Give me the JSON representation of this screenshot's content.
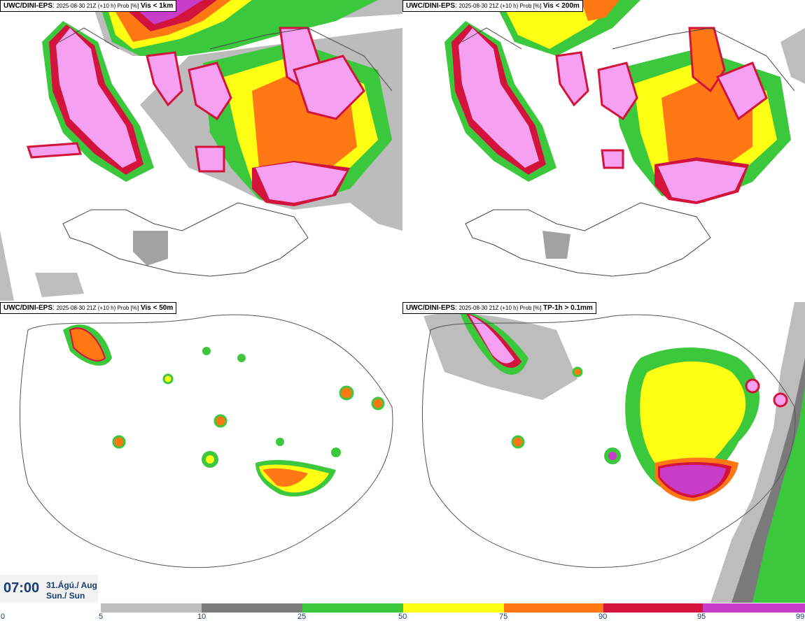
{
  "panels": [
    {
      "model": "UWC/DINI-EPS",
      "run": "2025-08-30 21Z (+10 h) Prob [%]",
      "variable": "Vis < 1km"
    },
    {
      "model": "UWC/DINI-EPS",
      "run": "2025-08-30 21Z (+10 h) Prob [%]",
      "variable": "Vis < 200m"
    },
    {
      "model": "UWC/DINI-EPS",
      "run": "2025-08-30 21Z (+10 h) Prob [%]",
      "variable": "Vis < 50m"
    },
    {
      "model": "UWC/DINI-EPS",
      "run": "2025-08-30 21Z (+10 h) Prob [%]",
      "variable": "TP-1h > 0.1mm"
    }
  ],
  "valid_time": "07:00",
  "date_line1": "31.Ágú./ Aug",
  "date_line2": "Sun./ Sun",
  "colorbar": {
    "ticks": [
      "0",
      "5",
      "10",
      "25",
      "50",
      "75",
      "90",
      "95",
      "99"
    ],
    "colors": [
      "#bdbdbd",
      "#7a7a7a",
      "#3cc83c",
      "#ffff14",
      "#ff7814",
      "#d2143c",
      "#c83cc8",
      "#f5a0f0"
    ]
  }
}
